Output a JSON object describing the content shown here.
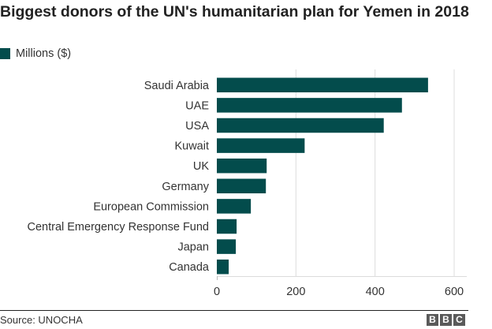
{
  "chart_data": {
    "type": "bar",
    "orientation": "horizontal",
    "title": "Biggest donors of the UN's humanitarian plan for Yemen in 2018",
    "legend": [
      {
        "label": "Millions ($)",
        "color": "#034c4c"
      }
    ],
    "legend_position": "top-left",
    "categories": [
      "Saudi Arabia",
      "UAE",
      "USA",
      "Kuwait",
      "UK",
      "Germany",
      "European Commission",
      "Central Emergency Response Fund",
      "Japan",
      "Canada"
    ],
    "series": [
      {
        "name": "Millions ($)",
        "values": [
          534,
          468,
          422,
          222,
          126,
          124,
          86,
          50,
          48,
          30
        ]
      }
    ],
    "xlabel": "",
    "ylabel": "",
    "xlim": [
      0,
      600
    ],
    "xticks": [
      0,
      200,
      400,
      600
    ],
    "xtick_labels": [
      "0",
      "200",
      "400",
      "600"
    ],
    "grid": true,
    "bar_color": "#034c4c"
  },
  "footer": {
    "source": "Source: UNOCHA",
    "logo_letters": [
      "B",
      "B",
      "C"
    ]
  }
}
